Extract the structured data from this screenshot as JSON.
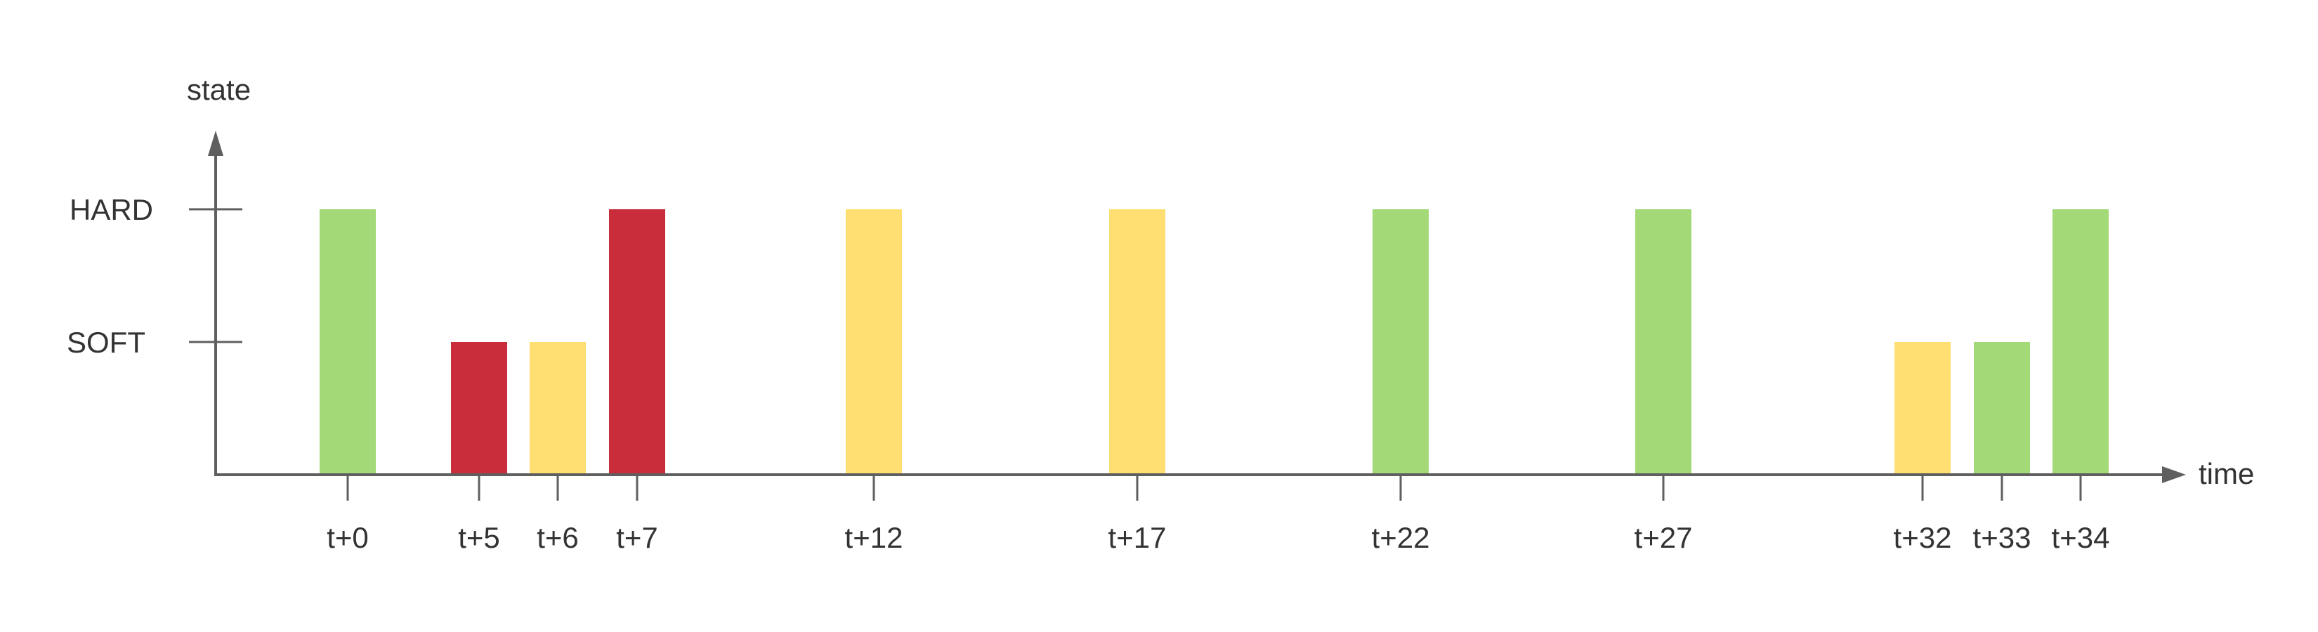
{
  "chart_data": {
    "type": "bar",
    "xlabel": "time",
    "ylabel": "state",
    "y_levels": [
      "SOFT",
      "HARD"
    ],
    "categories": [
      "t+0",
      "t+5",
      "t+6",
      "t+7",
      "t+12",
      "t+17",
      "t+22",
      "t+27",
      "t+32",
      "t+33",
      "t+34"
    ],
    "values": [
      "HARD",
      "SOFT",
      "SOFT",
      "HARD",
      "HARD",
      "HARD",
      "HARD",
      "HARD",
      "SOFT",
      "SOFT",
      "HARD"
    ],
    "bar_colors": [
      "green",
      "red",
      "yellow",
      "red",
      "yellow",
      "yellow",
      "green",
      "green",
      "yellow",
      "green",
      "green"
    ],
    "grid": false,
    "legend": "none"
  },
  "colors": {
    "green": "#a3d977",
    "yellow": "#ffdf71",
    "red": "#c92d3b",
    "axis": "#5f5f5f"
  }
}
